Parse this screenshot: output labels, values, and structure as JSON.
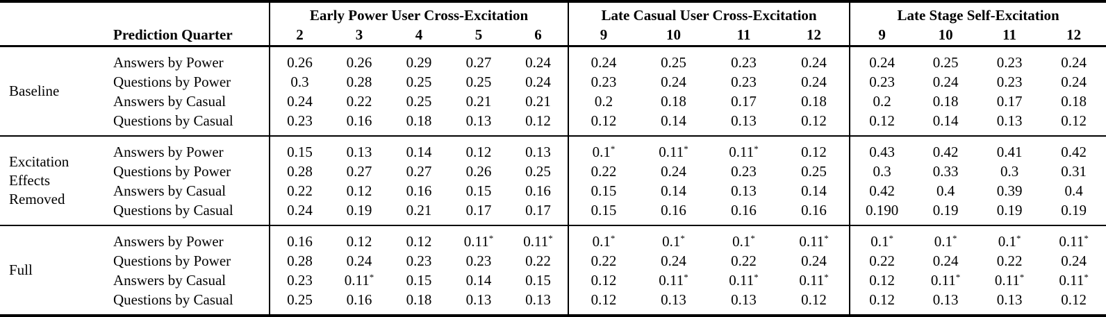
{
  "colors": {
    "text": "#000000",
    "background": "#ffffff",
    "rule": "#000000"
  },
  "table": {
    "row_header_label": "Prediction Quarter",
    "significance_marker": "*",
    "col_groups": [
      {
        "title": "Early Power User Cross-Excitation",
        "quarters": [
          "2",
          "3",
          "4",
          "5",
          "6"
        ]
      },
      {
        "title": "Late Casual User Cross-Excitation",
        "quarters": [
          "9",
          "10",
          "11",
          "12"
        ]
      },
      {
        "title": "Late Stage Self-Excitation",
        "quarters": [
          "9",
          "10",
          "11",
          "12"
        ]
      }
    ],
    "row_groups": [
      {
        "label": "Baseline",
        "rows": [
          {
            "label": "Answers by Power",
            "values": [
              [
                "0.26",
                "0.26",
                "0.29",
                "0.27",
                "0.24"
              ],
              [
                "0.24",
                "0.25",
                "0.23",
                "0.24"
              ],
              [
                "0.24",
                "0.25",
                "0.23",
                "0.24"
              ]
            ]
          },
          {
            "label": "Questions by Power",
            "values": [
              [
                "0.3",
                "0.28",
                "0.25",
                "0.25",
                "0.24"
              ],
              [
                "0.23",
                "0.24",
                "0.23",
                "0.24"
              ],
              [
                "0.23",
                "0.24",
                "0.23",
                "0.24"
              ]
            ]
          },
          {
            "label": "Answers by Casual",
            "values": [
              [
                "0.24",
                "0.22",
                "0.25",
                "0.21",
                "0.21"
              ],
              [
                "0.2",
                "0.18",
                "0.17",
                "0.18"
              ],
              [
                "0.2",
                "0.18",
                "0.17",
                "0.18"
              ]
            ]
          },
          {
            "label": "Questions by Casual",
            "values": [
              [
                "0.23",
                "0.16",
                "0.18",
                "0.13",
                "0.12"
              ],
              [
                "0.12",
                "0.14",
                "0.13",
                "0.12"
              ],
              [
                "0.12",
                "0.14",
                "0.13",
                "0.12"
              ]
            ]
          }
        ]
      },
      {
        "label": "Excitation Effects Removed",
        "rows": [
          {
            "label": "Answers by Power",
            "values": [
              [
                "0.15",
                "0.13",
                "0.14",
                "0.12",
                "0.13"
              ],
              [
                "0.1*",
                "0.11*",
                "0.11*",
                "0.12"
              ],
              [
                "0.43",
                "0.42",
                "0.41",
                "0.42"
              ]
            ]
          },
          {
            "label": "Questions by Power",
            "values": [
              [
                "0.28",
                "0.27",
                "0.27",
                "0.26",
                "0.25"
              ],
              [
                "0.22",
                "0.24",
                "0.23",
                "0.25"
              ],
              [
                "0.3",
                "0.33",
                "0.3",
                "0.31"
              ]
            ]
          },
          {
            "label": "Answers by Casual",
            "values": [
              [
                "0.22",
                "0.12",
                "0.16",
                "0.15",
                "0.16"
              ],
              [
                "0.15",
                "0.14",
                "0.13",
                "0.14"
              ],
              [
                "0.42",
                "0.4",
                "0.39",
                "0.4"
              ]
            ]
          },
          {
            "label": "Questions by Casual",
            "values": [
              [
                "0.24",
                "0.19",
                "0.21",
                "0.17",
                "0.17"
              ],
              [
                "0.15",
                "0.16",
                "0.16",
                "0.16"
              ],
              [
                "0.190",
                "0.19",
                "0.19",
                "0.19"
              ]
            ]
          }
        ]
      },
      {
        "label": "Full",
        "rows": [
          {
            "label": "Answers by Power",
            "values": [
              [
                "0.16",
                "0.12",
                "0.12",
                "0.11*",
                "0.11*"
              ],
              [
                "0.1*",
                "0.1*",
                "0.1*",
                "0.11*"
              ],
              [
                "0.1*",
                "0.1*",
                "0.1*",
                "0.11*"
              ]
            ]
          },
          {
            "label": "Questions by Power",
            "values": [
              [
                "0.28",
                "0.24",
                "0.23",
                "0.23",
                "0.22"
              ],
              [
                "0.22",
                "0.24",
                "0.22",
                "0.24"
              ],
              [
                "0.22",
                "0.24",
                "0.22",
                "0.24"
              ]
            ]
          },
          {
            "label": "Answers by Casual",
            "values": [
              [
                "0.23",
                "0.11*",
                "0.15",
                "0.14",
                "0.15"
              ],
              [
                "0.12",
                "0.11*",
                "0.11*",
                "0.11*"
              ],
              [
                "0.12",
                "0.11*",
                "0.11*",
                "0.11*"
              ]
            ]
          },
          {
            "label": "Questions by Casual",
            "values": [
              [
                "0.25",
                "0.16",
                "0.18",
                "0.13",
                "0.13"
              ],
              [
                "0.12",
                "0.13",
                "0.13",
                "0.12"
              ],
              [
                "0.12",
                "0.13",
                "0.13",
                "0.12"
              ]
            ]
          }
        ]
      }
    ]
  }
}
